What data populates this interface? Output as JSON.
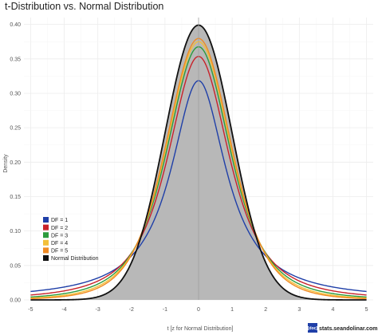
{
  "chart_data": {
    "type": "line",
    "title": "t-Distribution vs. Normal Distribution",
    "xlabel": "t [z for Normal Distribution]",
    "ylabel": "Density",
    "xlim": [
      -5.2,
      5.2
    ],
    "ylim": [
      0,
      0.41
    ],
    "x_ticks": [
      -5,
      -4,
      -3,
      -2,
      -1,
      0,
      1,
      2,
      3,
      4,
      5
    ],
    "y_ticks": [
      0.0,
      0.05,
      0.1,
      0.15,
      0.2,
      0.25,
      0.3,
      0.35,
      0.4
    ],
    "y_tick_labels": [
      "0.00",
      "0.05",
      "0.10",
      "0.15",
      "0.20",
      "0.25",
      "0.30",
      "0.35",
      "0.40"
    ],
    "grid": true,
    "legend_position": "bottom-left",
    "series": [
      {
        "name": "DF = 1",
        "color": "#1f3fa8",
        "df": 1
      },
      {
        "name": "DF = 2",
        "color": "#c8222a",
        "df": 2
      },
      {
        "name": "DF = 3",
        "color": "#2c9b3c",
        "df": 3
      },
      {
        "name": "DF = 4",
        "color": "#f3c03a",
        "df": 4
      },
      {
        "name": "DF = 5",
        "color": "#f08a23",
        "df": 5
      },
      {
        "name": "Normal Distribution",
        "color": "#111111",
        "df": "normal",
        "fill": "#b8b8b8"
      }
    ],
    "peak_values": {
      "DF = 1": 0.318,
      "DF = 2": 0.354,
      "DF = 3": 0.368,
      "DF = 4": 0.375,
      "DF = 5": 0.38,
      "Normal Distribution": 0.399
    },
    "watermark": {
      "badge": "[doc]",
      "text": "stats.seandolinar.com"
    }
  }
}
